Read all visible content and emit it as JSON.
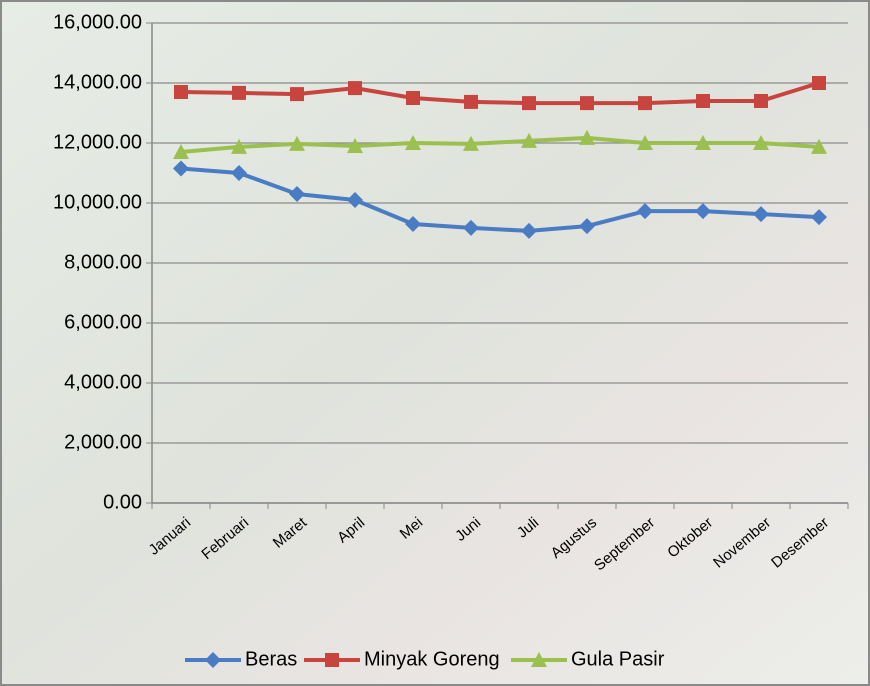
{
  "chart_data": {
    "type": "line",
    "categories": [
      "Januari",
      "Februari",
      "Maret",
      "April",
      "Mei",
      "Juni",
      "Juli",
      "Agustus",
      "September",
      "Oktober",
      "November",
      "Desember"
    ],
    "series": [
      {
        "name": "Beras",
        "color": "#4a7cc4",
        "marker": "diamond",
        "values": [
          11150,
          11000,
          10300,
          10100,
          9300,
          9170,
          9070,
          9230,
          9730,
          9730,
          9630,
          9530
        ]
      },
      {
        "name": "Minyak Goreng",
        "color": "#c8453f",
        "marker": "square",
        "values": [
          13700,
          13670,
          13630,
          13830,
          13500,
          13370,
          13330,
          13330,
          13330,
          13400,
          13400,
          14000
        ]
      },
      {
        "name": "Gula Pasir",
        "color": "#9bc04f",
        "marker": "triangle",
        "values": [
          11700,
          11870,
          11970,
          11900,
          12000,
          11970,
          12070,
          12170,
          12000,
          12000,
          12000,
          11870
        ]
      }
    ],
    "ylim": [
      0,
      16000
    ],
    "yticks": [
      {
        "value": 0,
        "label": "0.00"
      },
      {
        "value": 2000,
        "label": "2,000.00"
      },
      {
        "value": 4000,
        "label": "4,000.00"
      },
      {
        "value": 6000,
        "label": "6,000.00"
      },
      {
        "value": 8000,
        "label": "8,000.00"
      },
      {
        "value": 10000,
        "label": "10,000.00"
      },
      {
        "value": 12000,
        "label": "12,000.00"
      },
      {
        "value": 14000,
        "label": "14,000.00"
      },
      {
        "value": 16000,
        "label": "16,000.00"
      }
    ],
    "grid": true,
    "legend": "bottom"
  }
}
